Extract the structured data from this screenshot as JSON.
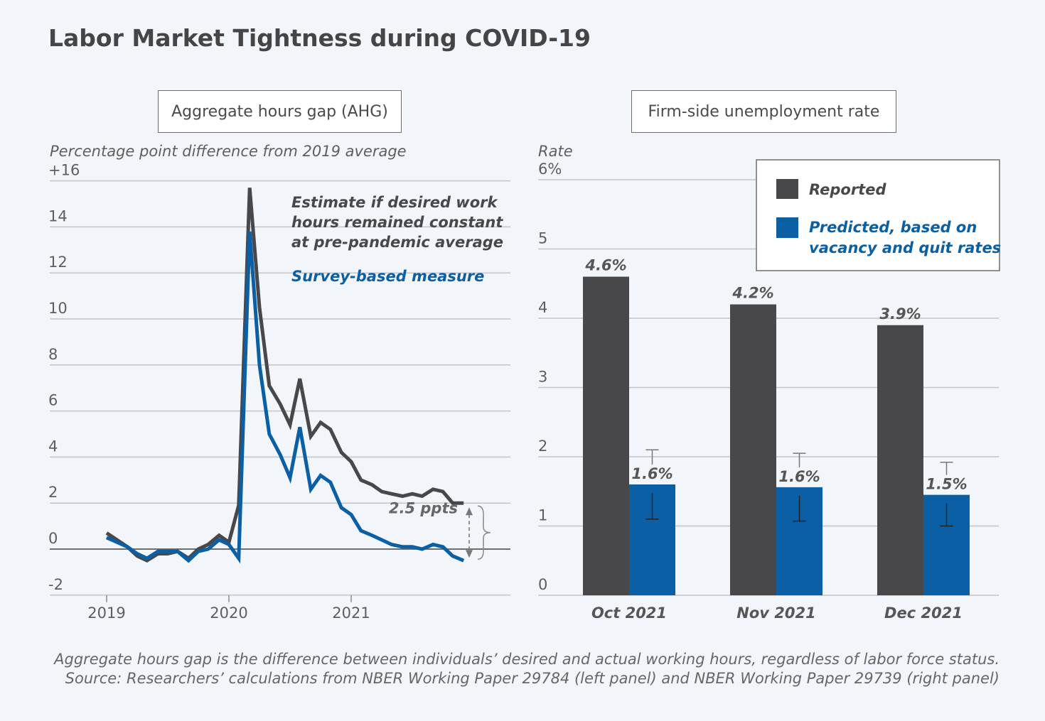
{
  "title": "Labor Market Tightness during COVID-19",
  "footnote": {
    "line1": "Aggregate hours gap is the difference between individuals’ desired and actual working hours, regardless of labor force status.",
    "line2": "Source: Researchers’ calculations from NBER Working Paper 29784 (left panel) and NBER Working Paper 29739 (right panel)"
  },
  "chart_data": [
    {
      "type": "line",
      "panel_title": "Aggregate hours gap (AHG)",
      "ylabel": "Percentage point difference from 2019 average",
      "ylim": [
        -2,
        16
      ],
      "yticks": [
        -2,
        0,
        2,
        4,
        6,
        8,
        10,
        12,
        14,
        16
      ],
      "ytick_labels": [
        "-2",
        "0",
        "2",
        "4",
        "6",
        "8",
        "10",
        "12",
        "14",
        "+16"
      ],
      "xticks": [
        2019,
        2020,
        2021
      ],
      "xtick_labels": [
        "2019",
        "2020",
        "2021"
      ],
      "grid": true,
      "series": [
        {
          "name": "Estimate if desired work hours remained constant at pre-pandemic average",
          "color": "#48484a",
          "x": [
            2019.0,
            2019.17,
            2019.25,
            2019.33,
            2019.42,
            2019.5,
            2019.58,
            2019.67,
            2019.75,
            2019.83,
            2019.92,
            2020.0,
            2020.08,
            2020.17,
            2020.25,
            2020.33,
            2020.42,
            2020.5,
            2020.58,
            2020.67,
            2020.75,
            2020.83,
            2020.92,
            2021.0,
            2021.08,
            2021.17,
            2021.25,
            2021.33,
            2021.42,
            2021.5,
            2021.58,
            2021.67,
            2021.75,
            2021.83,
            2021.92
          ],
          "values": [
            0.7,
            0.1,
            -0.3,
            -0.5,
            -0.2,
            -0.2,
            -0.1,
            -0.4,
            0.0,
            0.2,
            0.6,
            0.3,
            1.9,
            15.7,
            10.5,
            7.1,
            6.3,
            5.4,
            7.4,
            4.9,
            5.5,
            5.2,
            4.2,
            3.8,
            3.0,
            2.8,
            2.5,
            2.4,
            2.3,
            2.4,
            2.3,
            2.6,
            2.5,
            2.0,
            2.0
          ]
        },
        {
          "name": "Survey-based measure",
          "color": "#0a5fa5",
          "x": [
            2019.0,
            2019.17,
            2019.25,
            2019.33,
            2019.42,
            2019.5,
            2019.58,
            2019.67,
            2019.75,
            2019.83,
            2019.92,
            2020.0,
            2020.08,
            2020.17,
            2020.25,
            2020.33,
            2020.42,
            2020.5,
            2020.58,
            2020.67,
            2020.75,
            2020.83,
            2020.92,
            2021.0,
            2021.08,
            2021.17,
            2021.25,
            2021.33,
            2021.42,
            2021.5,
            2021.58,
            2021.67,
            2021.75,
            2021.83,
            2021.92
          ],
          "values": [
            0.5,
            0.1,
            -0.2,
            -0.4,
            -0.1,
            -0.1,
            -0.1,
            -0.5,
            -0.1,
            0.0,
            0.4,
            0.2,
            -0.4,
            13.8,
            8.0,
            5.0,
            4.1,
            3.1,
            5.3,
            2.6,
            3.2,
            2.9,
            1.8,
            1.5,
            0.8,
            0.6,
            0.4,
            0.2,
            0.1,
            0.1,
            0.0,
            0.2,
            0.1,
            -0.3,
            -0.5
          ]
        }
      ],
      "annotations": {
        "gray_label": [
          "Estimate if desired work",
          "hours remained constant",
          "at pre-pandemic average"
        ],
        "blue_label": "Survey-based measure",
        "gap_label": "2.5 ppts"
      }
    },
    {
      "type": "bar",
      "panel_title": "Firm-side unemployment rate",
      "ylabel": "Rate",
      "ylim": [
        0,
        6
      ],
      "yticks": [
        0,
        1,
        2,
        3,
        4,
        5,
        6
      ],
      "ytick_labels": [
        "0",
        "1",
        "2",
        "3",
        "4",
        "5",
        "6%"
      ],
      "categories": [
        "Oct 2021",
        "Nov 2021",
        "Dec 2021"
      ],
      "legend_position": "top-right",
      "grid": true,
      "series": [
        {
          "name": "Reported",
          "color": "#48484a",
          "values": [
            4.6,
            4.2,
            3.9
          ],
          "labels": [
            "4.6%",
            "4.2%",
            "3.9%"
          ]
        },
        {
          "name": "Predicted, based on vacancy and quit rates",
          "name_lines": [
            "Predicted, based on",
            "vacancy and quit rates"
          ],
          "color": "#0a5fa5",
          "values": [
            1.6,
            1.56,
            1.45
          ],
          "labels": [
            "1.6%",
            "1.6%",
            "1.5%"
          ],
          "error_low": [
            1.1,
            1.07,
            1.0
          ],
          "error_high": [
            2.1,
            2.05,
            1.92
          ]
        }
      ]
    }
  ]
}
